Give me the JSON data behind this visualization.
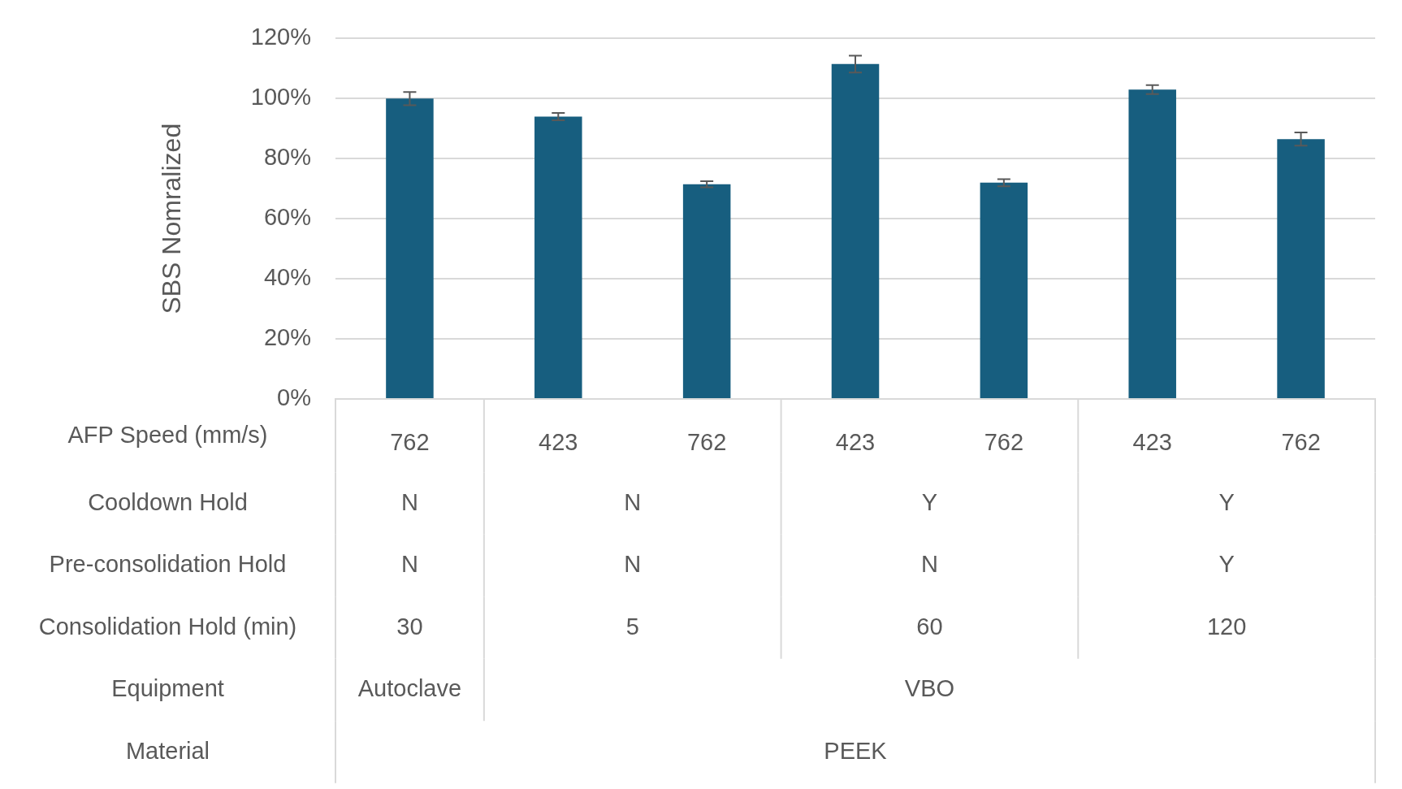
{
  "chart_data": {
    "type": "bar",
    "ylabel": "SBS Nomralized",
    "xlabel": "AFP Speed (mm/s)",
    "categories": [
      "762",
      "423",
      "762",
      "423",
      "762",
      "423",
      "762"
    ],
    "values": [
      100,
      94,
      71.5,
      111.5,
      72,
      103,
      86.5
    ],
    "errors": [
      2.2,
      1.2,
      1,
      2.8,
      1.2,
      1.5,
      2.2
    ],
    "color": "#175e7f",
    "ylim": [
      0,
      120
    ],
    "yticks": [
      {
        "value": 0,
        "label": "0%"
      },
      {
        "value": 20,
        "label": "20%"
      },
      {
        "value": 40,
        "label": "40%"
      },
      {
        "value": 60,
        "label": "60%"
      },
      {
        "value": 80,
        "label": "80%"
      },
      {
        "value": 100,
        "label": "100%"
      },
      {
        "value": 120,
        "label": "120%"
      }
    ],
    "grid": "y",
    "annotations": [
      "Cooldown Hold",
      "N",
      "N",
      "Y",
      "Y",
      "Pre-consolidation Hold",
      "N",
      "N",
      "N",
      "Y",
      "Consolidation Hold (min)",
      "30",
      "5",
      "60",
      "120",
      "Equipment",
      "Autoclave",
      "VBO",
      "Material",
      "PEEK"
    ]
  }
}
